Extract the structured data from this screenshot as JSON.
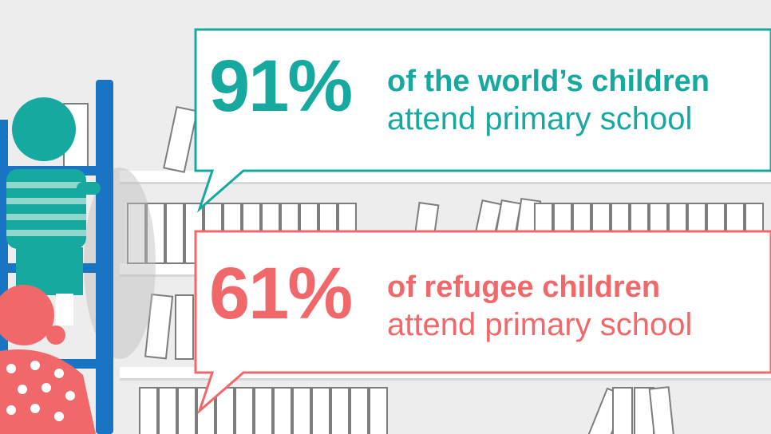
{
  "colors": {
    "background": "#ededed",
    "teal": "#16a9a0",
    "coral": "#f0686a",
    "ladder_blue": "#1a74c4",
    "book_outline": "#7d7d7d",
    "shelf": "#ffffff"
  },
  "stats": [
    {
      "percent": "91%",
      "line1": "of the world’s children",
      "line2": "attend primary school",
      "color": "#16a9a0"
    },
    {
      "percent": "61%",
      "line1": "of refugee children",
      "line2": "attend primary school",
      "color": "#f0686a"
    }
  ],
  "illustration": {
    "child_top": {
      "shirt": "striped",
      "color": "#16a9a0"
    },
    "child_bottom": {
      "shirt": "polka-dot",
      "color": "#f0686a"
    }
  }
}
